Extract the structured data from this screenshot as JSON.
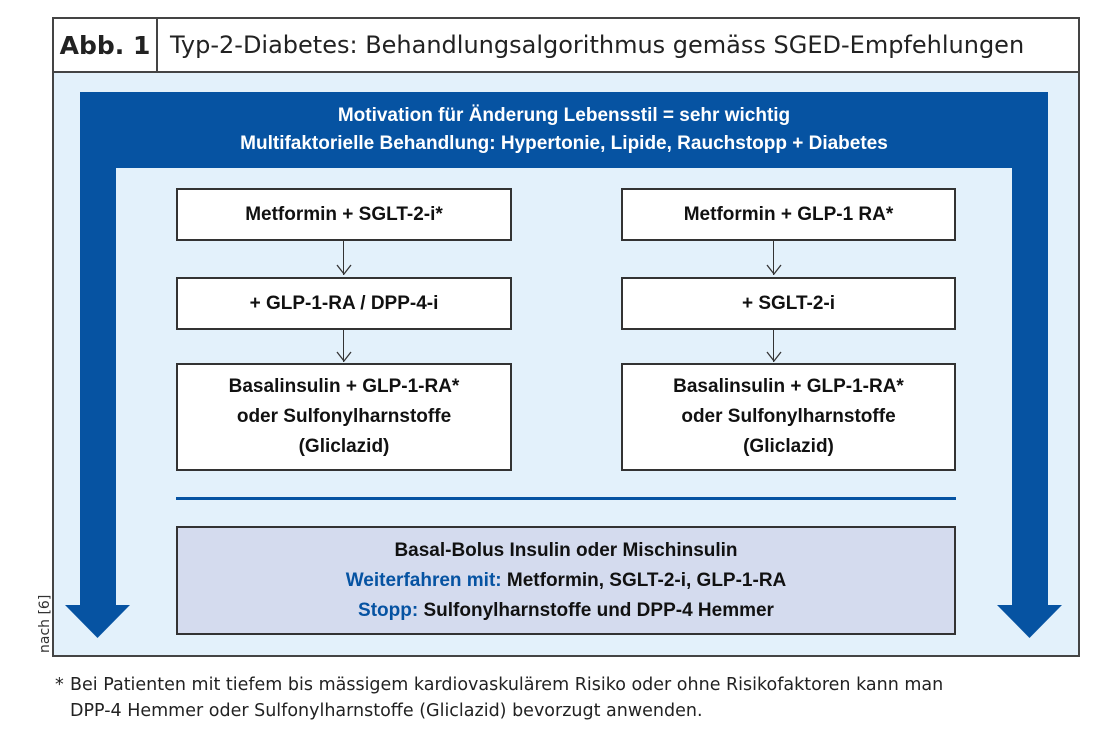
{
  "header": {
    "label": "Abb. 1",
    "title": "Typ-2-Diabetes: Behandlungsalgorithmus gemäss SGED-Empfehlungen"
  },
  "band": {
    "line1": "Motivation für Änderung Lebensstil = sehr wichtig",
    "line2": "Multifaktorielle Behandlung: Hypertonie, Lipide, Rauchstopp + Diabetes"
  },
  "left": {
    "step1": "Metformin + SGLT-2-i*",
    "step2": "+ GLP-1-RA / DPP-4-i",
    "step3": [
      "Basalinsulin + GLP-1-RA*",
      "oder Sulfonylharnstoffe",
      "(Gliclazid)"
    ]
  },
  "right": {
    "step1": "Metformin + GLP-1 RA*",
    "step2": "+ SGLT-2-i",
    "step3": [
      "Basalinsulin + GLP-1-RA*",
      "oder Sulfonylharnstoffe",
      "(Gliclazid)"
    ]
  },
  "bottom": {
    "line1": "Basal-Bolus Insulin oder Mischinsulin",
    "continue_label": "Weiterfahren mit:",
    "continue_text": " Metformin, SGLT-2-i, GLP-1-RA",
    "stop_label": "Stopp:",
    "stop_text": " Sulfonylharnstoffe und DPP-4 Hemmer"
  },
  "footnote": {
    "star": "*",
    "line1": "Bei Patienten mit tiefem bis mässigem kardiovaskulärem Risiko oder ohne Risikofaktoren kann man",
    "line2": "DPP-4 Hemmer oder Sulfonylharnstoffe (Gliclazid) bevorzugt anwenden."
  },
  "source": "nach [6]",
  "colors": {
    "accent": "#0653a2",
    "background": "#e3f1fb",
    "bottom_box": "#d4dbee"
  }
}
